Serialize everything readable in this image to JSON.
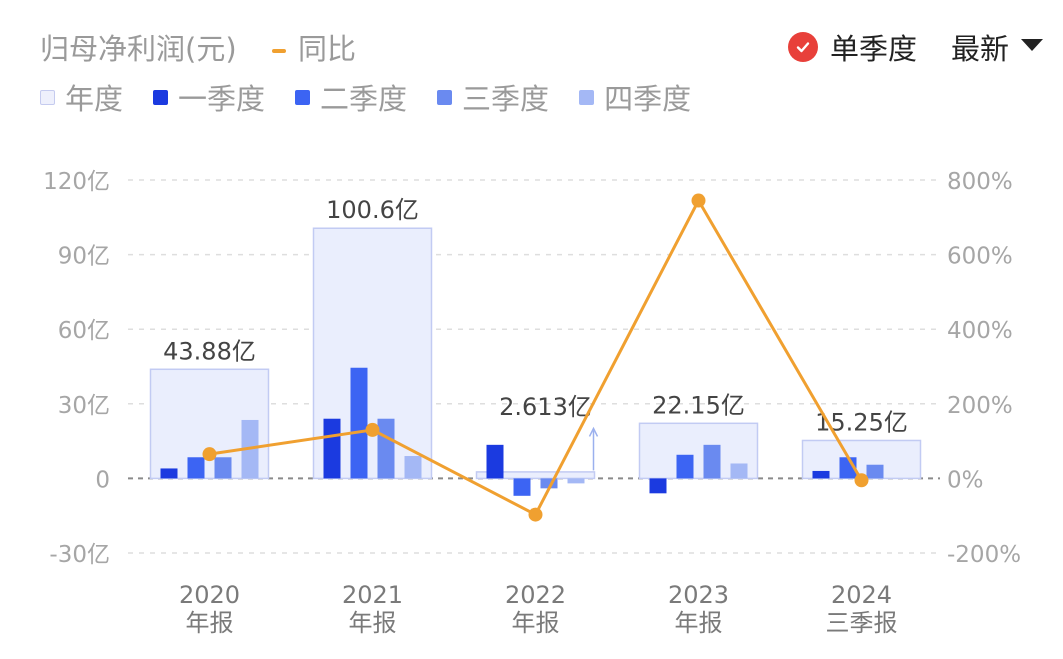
{
  "header": {
    "title": "归母净利润(元)",
    "yoy_label": "同比",
    "mode_label": "单季度",
    "latest_label": "最新"
  },
  "legend": [
    {
      "name": "年度",
      "color": "#eef0fc"
    },
    {
      "name": "一季度",
      "color": "#1b3ae0"
    },
    {
      "name": "二季度",
      "color": "#3c64f3"
    },
    {
      "name": "三季度",
      "color": "#6a8af0"
    },
    {
      "name": "四季度",
      "color": "#a4b8f5"
    }
  ],
  "colors": {
    "annual_fill": "#eaeefd",
    "annual_stroke": "#c2cbf3",
    "yoy_line": "#f0a030"
  },
  "chart_data": {
    "type": "bar",
    "categories": [
      {
        "year": "2020",
        "period": "年报"
      },
      {
        "year": "2021",
        "period": "年报"
      },
      {
        "year": "2022",
        "period": "年报"
      },
      {
        "year": "2023",
        "period": "年报"
      },
      {
        "year": "2024",
        "period": "三季报"
      }
    ],
    "annual": {
      "name": "年度",
      "values": [
        43.88,
        100.6,
        2.613,
        22.15,
        15.25
      ],
      "labels": [
        "43.88亿",
        "100.6亿",
        "2.613亿",
        "22.15亿",
        "15.25亿"
      ]
    },
    "series": [
      {
        "name": "一季度",
        "values": [
          4,
          24,
          13.5,
          -6,
          3
        ]
      },
      {
        "name": "二季度",
        "values": [
          8.5,
          44.5,
          -7,
          9.5,
          8.5
        ]
      },
      {
        "name": "三季度",
        "values": [
          8.5,
          24,
          -4,
          13.5,
          5.5
        ]
      },
      {
        "name": "四季度",
        "values": [
          23.5,
          9,
          -2,
          6,
          null
        ]
      }
    ],
    "yoy": {
      "name": "同比",
      "values": [
        65,
        130,
        -97,
        745,
        -5
      ]
    },
    "y_left": {
      "ticks": [
        120,
        90,
        60,
        30,
        0,
        -30
      ],
      "tick_labels": [
        "120亿",
        "90亿",
        "60亿",
        "30亿",
        "0",
        "-30亿"
      ],
      "ylim": [
        -30,
        120
      ]
    },
    "y_right": {
      "ticks": [
        800,
        600,
        400,
        200,
        0,
        -200
      ],
      "tick_labels": [
        "800%",
        "600%",
        "400%",
        "200%",
        "0%",
        "-200%"
      ],
      "ylim": [
        -200,
        800
      ]
    }
  }
}
